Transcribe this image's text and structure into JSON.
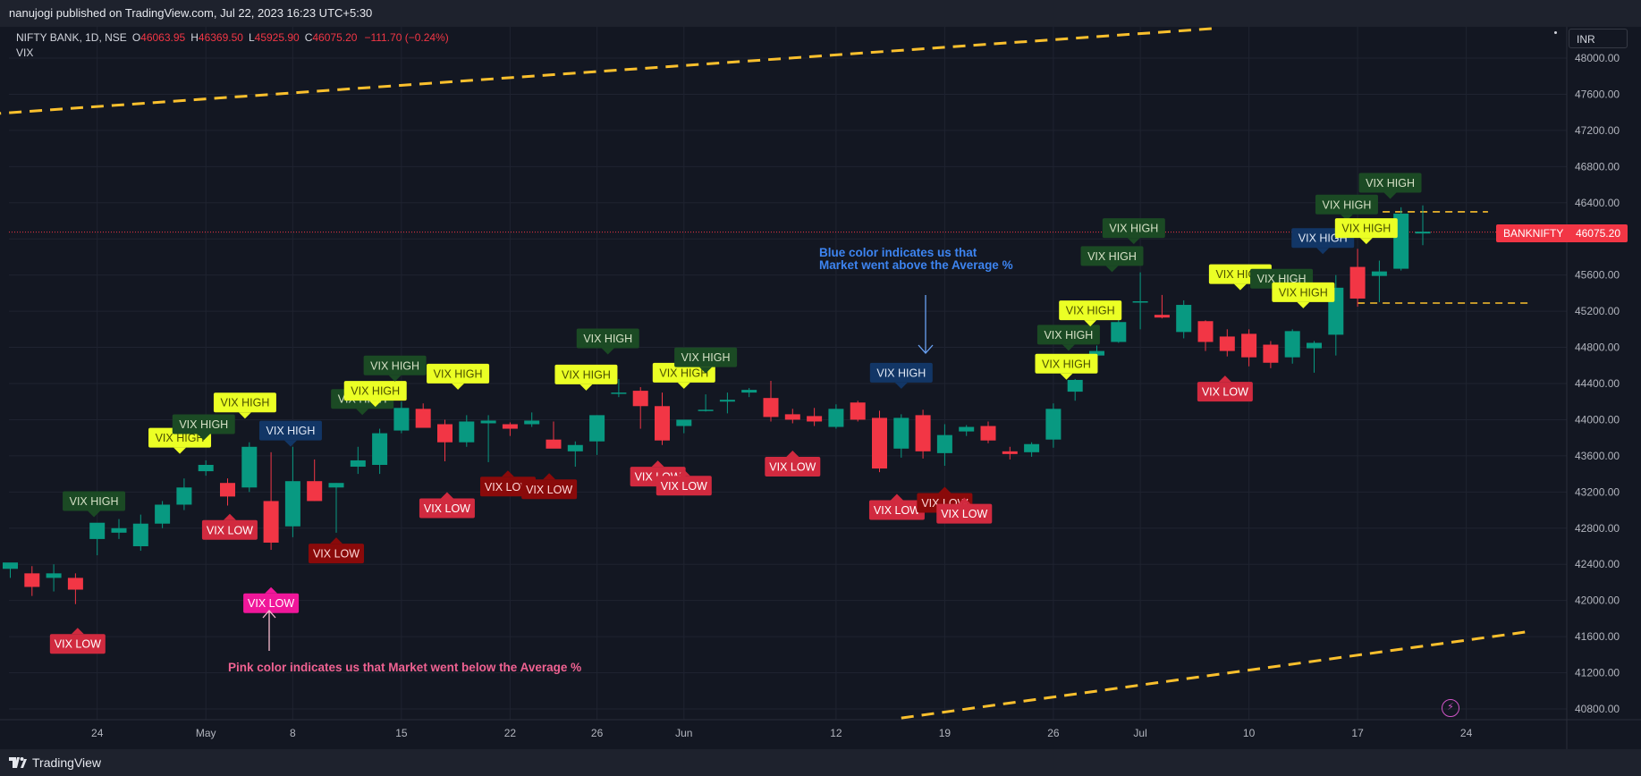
{
  "header": {
    "publish_text": "nanujogi published on TradingView.com, Jul 22, 2023 16:23 UTC+5:30"
  },
  "legend": {
    "symbol": "NIFTY BANK, 1D, NSE",
    "o_label": "O",
    "o_value": "46063.95",
    "h_label": "H",
    "h_value": "46369.50",
    "l_label": "L",
    "l_value": "45925.90",
    "c_label": "C",
    "c_value": "46075.20",
    "change": "−111.70 (−0.24%)",
    "indicator": "VIX"
  },
  "currency": "INR",
  "last_price": {
    "ticker": "BANKNIFTY",
    "value": "46075.20",
    "color": "#f23645"
  },
  "footer": {
    "brand": "TradingView"
  },
  "colors": {
    "up": "#089981",
    "down": "#f23645",
    "background": "#131722",
    "grid": "#1f2330",
    "trendline": "#fbc02d",
    "vix_high_dark": "#1b4a24",
    "vix_high_yellow": "#ebff25",
    "vix_high_blue": "#123666",
    "vix_low_red": "#d12a3f",
    "vix_low_dark": "#8a0a0a",
    "vix_low_pink": "#f0179a",
    "note_pink": "#f06292",
    "note_blue": "#3d84f0"
  },
  "chart_data": {
    "type": "candlestick",
    "symbol": "BANKNIFTY",
    "ylim": [
      40500,
      48300
    ],
    "y_ticks": [
      "48000.00",
      "47600.00",
      "47200.00",
      "46800.00",
      "46400.00",
      "46000.00",
      "45600.00",
      "45200.00",
      "44800.00",
      "44400.00",
      "44000.00",
      "43600.00",
      "43200.00",
      "42800.00",
      "42400.00",
      "42000.00",
      "41600.00",
      "41200.00",
      "40800.00"
    ],
    "x_ticks": [
      {
        "label": "24",
        "idx": 4
      },
      {
        "label": "May",
        "idx": 9
      },
      {
        "label": "8",
        "idx": 13
      },
      {
        "label": "15",
        "idx": 18
      },
      {
        "label": "22",
        "idx": 23
      },
      {
        "label": "26",
        "idx": 27
      },
      {
        "label": "Jun",
        "idx": 31
      },
      {
        "label": "12",
        "idx": 38
      },
      {
        "label": "19",
        "idx": 43
      },
      {
        "label": "26",
        "idx": 48
      },
      {
        "label": "Jul",
        "idx": 52
      },
      {
        "label": "10",
        "idx": 57
      },
      {
        "label": "17",
        "idx": 62
      },
      {
        "label": "24",
        "idx": 67
      }
    ],
    "candles": [
      {
        "o": 42350,
        "h": 42400,
        "l": 42250,
        "c": 42420
      },
      {
        "o": 42300,
        "h": 42380,
        "l": 42050,
        "c": 42150
      },
      {
        "o": 42250,
        "h": 42400,
        "l": 42100,
        "c": 42300
      },
      {
        "o": 42250,
        "h": 42300,
        "l": 41960,
        "c": 42120
      },
      {
        "o": 42680,
        "h": 42800,
        "l": 42500,
        "c": 42860
      },
      {
        "o": 42750,
        "h": 42900,
        "l": 42680,
        "c": 42800
      },
      {
        "o": 42600,
        "h": 42950,
        "l": 42550,
        "c": 42850
      },
      {
        "o": 42850,
        "h": 43100,
        "l": 42800,
        "c": 43060
      },
      {
        "o": 43060,
        "h": 43350,
        "l": 43000,
        "c": 43250
      },
      {
        "o": 43430,
        "h": 43550,
        "l": 43380,
        "c": 43500
      },
      {
        "o": 43300,
        "h": 43350,
        "l": 43050,
        "c": 43150
      },
      {
        "o": 43250,
        "h": 43750,
        "l": 43200,
        "c": 43700
      },
      {
        "o": 43100,
        "h": 43640,
        "l": 42560,
        "c": 42640
      },
      {
        "o": 42820,
        "h": 43700,
        "l": 42700,
        "c": 43320
      },
      {
        "o": 43320,
        "h": 43560,
        "l": 43100,
        "c": 43100
      },
      {
        "o": 43250,
        "h": 43300,
        "l": 42750,
        "c": 43300
      },
      {
        "o": 43480,
        "h": 43700,
        "l": 43400,
        "c": 43550
      },
      {
        "o": 43500,
        "h": 43900,
        "l": 43400,
        "c": 43850
      },
      {
        "o": 43880,
        "h": 44200,
        "l": 43850,
        "c": 44130
      },
      {
        "o": 44120,
        "h": 44180,
        "l": 43950,
        "c": 43910
      },
      {
        "o": 43950,
        "h": 44000,
        "l": 43540,
        "c": 43750
      },
      {
        "o": 43750,
        "h": 44050,
        "l": 43700,
        "c": 43980
      },
      {
        "o": 43960,
        "h": 44050,
        "l": 43530,
        "c": 43990
      },
      {
        "o": 43950,
        "h": 43970,
        "l": 43820,
        "c": 43900
      },
      {
        "o": 43950,
        "h": 44080,
        "l": 43920,
        "c": 43990
      },
      {
        "o": 43780,
        "h": 43980,
        "l": 43700,
        "c": 43680
      },
      {
        "o": 43650,
        "h": 43760,
        "l": 43480,
        "c": 43720
      },
      {
        "o": 43760,
        "h": 44050,
        "l": 43610,
        "c": 44050
      },
      {
        "o": 44300,
        "h": 44450,
        "l": 44250,
        "c": 44300
      },
      {
        "o": 44320,
        "h": 44360,
        "l": 43900,
        "c": 44150
      },
      {
        "o": 44150,
        "h": 44300,
        "l": 43720,
        "c": 43770
      },
      {
        "o": 43930,
        "h": 44000,
        "l": 43850,
        "c": 44000
      },
      {
        "o": 44100,
        "h": 44280,
        "l": 44090,
        "c": 44110
      },
      {
        "o": 44200,
        "h": 44300,
        "l": 44070,
        "c": 44220
      },
      {
        "o": 44300,
        "h": 44350,
        "l": 44250,
        "c": 44330
      },
      {
        "o": 44240,
        "h": 44430,
        "l": 43980,
        "c": 44030
      },
      {
        "o": 44060,
        "h": 44120,
        "l": 43960,
        "c": 44000
      },
      {
        "o": 44040,
        "h": 44130,
        "l": 43930,
        "c": 43980
      },
      {
        "o": 43920,
        "h": 44170,
        "l": 43900,
        "c": 44120
      },
      {
        "o": 44190,
        "h": 44210,
        "l": 43980,
        "c": 44000
      },
      {
        "o": 44020,
        "h": 44100,
        "l": 43420,
        "c": 43460
      },
      {
        "o": 43680,
        "h": 44060,
        "l": 43580,
        "c": 44020
      },
      {
        "o": 44050,
        "h": 44110,
        "l": 43570,
        "c": 43650
      },
      {
        "o": 43630,
        "h": 43950,
        "l": 43490,
        "c": 43830
      },
      {
        "o": 43870,
        "h": 43940,
        "l": 43820,
        "c": 43920
      },
      {
        "o": 43930,
        "h": 43980,
        "l": 43740,
        "c": 43770
      },
      {
        "o": 43650,
        "h": 43700,
        "l": 43560,
        "c": 43620
      },
      {
        "o": 43640,
        "h": 43750,
        "l": 43590,
        "c": 43730
      },
      {
        "o": 43780,
        "h": 44180,
        "l": 43690,
        "c": 44120
      },
      {
        "o": 44310,
        "h": 44450,
        "l": 44210,
        "c": 44440
      },
      {
        "o": 44710,
        "h": 44820,
        "l": 44670,
        "c": 44760
      },
      {
        "o": 44860,
        "h": 45120,
        "l": 44850,
        "c": 45080
      },
      {
        "o": 45300,
        "h": 45630,
        "l": 45000,
        "c": 45310
      },
      {
        "o": 45160,
        "h": 45380,
        "l": 45120,
        "c": 45130
      },
      {
        "o": 44970,
        "h": 45320,
        "l": 44900,
        "c": 45270
      },
      {
        "o": 45090,
        "h": 45100,
        "l": 44760,
        "c": 44860
      },
      {
        "o": 44920,
        "h": 45000,
        "l": 44700,
        "c": 44760
      },
      {
        "o": 44950,
        "h": 45000,
        "l": 44590,
        "c": 44690
      },
      {
        "o": 44830,
        "h": 44870,
        "l": 44570,
        "c": 44630
      },
      {
        "o": 44690,
        "h": 45000,
        "l": 44620,
        "c": 44980
      },
      {
        "o": 44790,
        "h": 44870,
        "l": 44520,
        "c": 44850
      },
      {
        "o": 44940,
        "h": 45600,
        "l": 44710,
        "c": 45460
      },
      {
        "o": 45690,
        "h": 45890,
        "l": 45250,
        "c": 45340
      },
      {
        "o": 45590,
        "h": 45760,
        "l": 45300,
        "c": 45640
      },
      {
        "o": 45670,
        "h": 46350,
        "l": 45650,
        "c": 46280
      },
      {
        "o": 46060,
        "h": 46370,
        "l": 45930,
        "c": 46080
      }
    ],
    "trendlines": [
      {
        "type": "dashed",
        "color": "#fbc02d",
        "from": {
          "idx": -1,
          "price": 47380
        },
        "to": {
          "idx": 55.5,
          "price": 48330
        }
      },
      {
        "type": "dashed",
        "color": "#fbc02d",
        "from": {
          "idx": 41,
          "price": 40700
        },
        "to": {
          "idx": 70,
          "price": 41660
        }
      },
      {
        "type": "dashed-short",
        "color": "#fbc02d",
        "from": {
          "idx": 62,
          "price": 46300
        },
        "to": {
          "idx": 68,
          "price": 46300
        }
      },
      {
        "type": "dashed-short",
        "color": "#fbc02d",
        "from": {
          "idx": 62,
          "price": 45290
        },
        "to": {
          "idx": 70,
          "price": 45290
        }
      }
    ],
    "last_price_line": 46075.2,
    "labels": [
      {
        "text": "VIX HIGH",
        "idx": 3.85,
        "price": 43100,
        "style": "high_dark"
      },
      {
        "text": "VIX HIGH",
        "idx": 7.8,
        "price": 43800,
        "style": "high_yellow"
      },
      {
        "text": "VIX HIGH",
        "idx": 8.9,
        "price": 43950,
        "style": "high_dark"
      },
      {
        "text": "VIX HIGH",
        "idx": 10.8,
        "price": 44190,
        "style": "high_yellow"
      },
      {
        "text": "VIX HIGH",
        "idx": 12.9,
        "price": 43880,
        "style": "high_blue"
      },
      {
        "text": "VIX HIGH",
        "idx": 16.2,
        "price": 44230,
        "style": "high_dark"
      },
      {
        "text": "VIX HIGH",
        "idx": 16.8,
        "price": 44320,
        "style": "high_yellow"
      },
      {
        "text": "VIX HIGH",
        "idx": 17.7,
        "price": 44600,
        "style": "high_dark"
      },
      {
        "text": "VIX HIGH",
        "idx": 20.6,
        "price": 44510,
        "style": "high_yellow"
      },
      {
        "text": "VIX HIGH",
        "idx": 26.5,
        "price": 44500,
        "style": "high_yellow"
      },
      {
        "text": "VIX HIGH",
        "idx": 27.5,
        "price": 44900,
        "style": "high_dark"
      },
      {
        "text": "VIX HIGH",
        "idx": 31.0,
        "price": 44520,
        "style": "high_yellow"
      },
      {
        "text": "VIX HIGH",
        "idx": 32.0,
        "price": 44690,
        "style": "high_dark"
      },
      {
        "text": "VIX HIGH",
        "idx": 41.0,
        "price": 44520,
        "style": "high_blue"
      },
      {
        "text": "VIX HIGH",
        "idx": 48.6,
        "price": 44620,
        "style": "high_yellow"
      },
      {
        "text": "VIX HIGH",
        "idx": 48.7,
        "price": 44940,
        "style": "high_dark"
      },
      {
        "text": "VIX HIGH",
        "idx": 49.7,
        "price": 45210,
        "style": "high_yellow"
      },
      {
        "text": "VIX HIGH",
        "idx": 50.7,
        "price": 45810,
        "style": "high_dark"
      },
      {
        "text": "VIX HIGH",
        "idx": 51.7,
        "price": 46120,
        "style": "high_dark"
      },
      {
        "text": "VIX HIGH",
        "idx": 56.6,
        "price": 45610,
        "style": "high_yellow"
      },
      {
        "text": "VIX HIGH",
        "idx": 58.5,
        "price": 45560,
        "style": "high_dark"
      },
      {
        "text": "VIX HIGH",
        "idx": 59.5,
        "price": 45410,
        "style": "high_yellow"
      },
      {
        "text": "VIX HIGH",
        "idx": 60.4,
        "price": 46010,
        "style": "high_blue"
      },
      {
        "text": "VIX HIGH",
        "idx": 61.5,
        "price": 46380,
        "style": "high_dark"
      },
      {
        "text": "VIX HIGH",
        "idx": 62.4,
        "price": 46120,
        "style": "high_yellow"
      },
      {
        "text": "VIX HIGH",
        "idx": 63.5,
        "price": 46620,
        "style": "high_dark"
      },
      {
        "text": "VIX LOW",
        "idx": 3.1,
        "price": 41520,
        "style": "low_red"
      },
      {
        "text": "VIX LOW",
        "idx": 10.1,
        "price": 42780,
        "style": "low_red"
      },
      {
        "text": "VIX LOW",
        "idx": 12.0,
        "price": 41970,
        "style": "low_pink"
      },
      {
        "text": "VIX LOW",
        "idx": 15.0,
        "price": 42520,
        "style": "low_dark"
      },
      {
        "text": "VIX LOW",
        "idx": 20.1,
        "price": 43020,
        "style": "low_red"
      },
      {
        "text": "VIX LOW",
        "idx": 22.9,
        "price": 43260,
        "style": "low_dark"
      },
      {
        "text": "VIX LOW",
        "idx": 24.8,
        "price": 43230,
        "style": "low_dark"
      },
      {
        "text": "VIX LOW",
        "idx": 29.8,
        "price": 43370,
        "style": "low_red"
      },
      {
        "text": "VIX LOW",
        "idx": 31.0,
        "price": 43270,
        "style": "low_red"
      },
      {
        "text": "VIX LOW",
        "idx": 36.0,
        "price": 43480,
        "style": "low_red"
      },
      {
        "text": "VIX LOW",
        "idx": 40.8,
        "price": 43000,
        "style": "low_red"
      },
      {
        "text": "VIX LOW",
        "idx": 43.0,
        "price": 43080,
        "style": "low_dark"
      },
      {
        "text": "VIX LOW",
        "idx": 43.9,
        "price": 42960,
        "style": "low_red"
      },
      {
        "text": "VIX LOW",
        "idx": 55.9,
        "price": 44310,
        "style": "low_red"
      }
    ],
    "annotations": [
      {
        "text": "Pink color indicates us that Market went below the Average %",
        "style": "note_pink"
      },
      {
        "text": "Blue color indicates us that",
        "style": "note_blue"
      },
      {
        "text": "Market went above the Average %",
        "style": "note_blue"
      }
    ]
  }
}
